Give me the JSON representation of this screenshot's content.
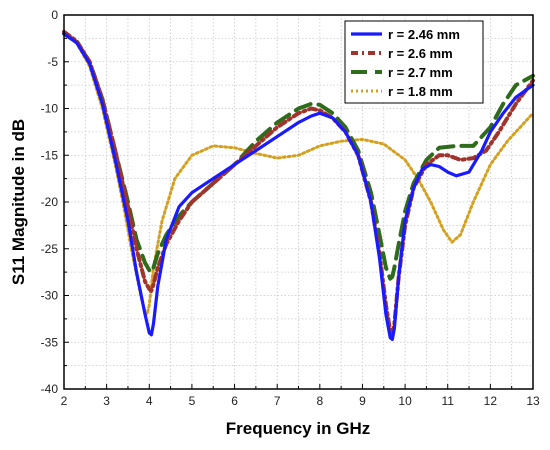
{
  "chart_data": {
    "type": "line",
    "title": "",
    "xlabel": "Frequency in GHz",
    "ylabel": "S11 Magnitude in dB",
    "xlim": [
      2,
      13
    ],
    "ylim": [
      -40,
      0
    ],
    "xticks": [
      2,
      3,
      4,
      5,
      6,
      7,
      8,
      9,
      10,
      11,
      12,
      13
    ],
    "yticks": [
      0,
      -5,
      -10,
      -15,
      -20,
      -25,
      -30,
      -35,
      -40
    ],
    "grid": "minor-dotted",
    "legend_position": "top-right",
    "series": [
      {
        "name": "r = 2.46 mm",
        "color": "#1a1aff",
        "style": "solid",
        "x": [
          2.0,
          2.3,
          2.6,
          2.9,
          3.2,
          3.5,
          3.7,
          3.9,
          4.0,
          4.05,
          4.1,
          4.2,
          4.4,
          4.7,
          5.0,
          5.5,
          6.0,
          6.5,
          7.0,
          7.5,
          7.8,
          8.0,
          8.3,
          8.6,
          8.9,
          9.2,
          9.4,
          9.55,
          9.65,
          9.7,
          9.75,
          9.85,
          10.0,
          10.2,
          10.4,
          10.6,
          10.8,
          11.0,
          11.2,
          11.5,
          11.8,
          12.0,
          12.3,
          12.6,
          13.0
        ],
        "values": [
          -2.0,
          -3.0,
          -5.2,
          -9.5,
          -15.5,
          -22.0,
          -27.5,
          -32.0,
          -34.0,
          -34.2,
          -33.0,
          -29.0,
          -24.0,
          -20.5,
          -19.0,
          -17.5,
          -16.0,
          -14.5,
          -13.0,
          -11.5,
          -10.8,
          -10.5,
          -11.0,
          -12.5,
          -15.0,
          -20.0,
          -26.0,
          -32.0,
          -34.5,
          -34.7,
          -33.5,
          -28.0,
          -22.0,
          -18.5,
          -16.5,
          -16.0,
          -16.2,
          -16.8,
          -17.2,
          -16.8,
          -14.5,
          -12.5,
          -10.5,
          -8.8,
          -7.5
        ]
      },
      {
        "name": "r = 2.6 mm",
        "color": "#a0342c",
        "style": "dash-dot",
        "x": [
          2.0,
          2.3,
          2.6,
          2.9,
          3.2,
          3.5,
          3.7,
          3.9,
          4.0,
          4.05,
          4.1,
          4.2,
          4.4,
          4.7,
          5.0,
          5.5,
          6.0,
          6.5,
          7.0,
          7.5,
          7.8,
          8.0,
          8.3,
          8.6,
          8.9,
          9.2,
          9.4,
          9.55,
          9.65,
          9.7,
          9.75,
          9.85,
          10.0,
          10.2,
          10.5,
          10.8,
          11.0,
          11.3,
          11.6,
          11.9,
          12.2,
          12.6,
          13.0
        ],
        "values": [
          -1.8,
          -2.8,
          -5.0,
          -9.0,
          -14.5,
          -20.5,
          -25.0,
          -28.5,
          -29.3,
          -29.5,
          -28.8,
          -27.0,
          -24.5,
          -22.0,
          -20.0,
          -18.0,
          -16.0,
          -14.0,
          -12.0,
          -10.5,
          -10.0,
          -10.2,
          -11.0,
          -12.5,
          -15.0,
          -20.0,
          -25.5,
          -31.0,
          -33.8,
          -34.2,
          -33.0,
          -28.0,
          -22.5,
          -18.5,
          -16.0,
          -15.0,
          -15.0,
          -15.5,
          -15.3,
          -14.5,
          -12.5,
          -9.5,
          -7.0
        ]
      },
      {
        "name": "r = 2.7 mm",
        "color": "#2e6b1a",
        "style": "long-dash",
        "x": [
          2.0,
          2.3,
          2.6,
          2.9,
          3.2,
          3.5,
          3.7,
          3.9,
          4.0,
          4.05,
          4.1,
          4.2,
          4.4,
          4.7,
          5.0,
          5.5,
          6.0,
          6.5,
          7.0,
          7.5,
          7.8,
          8.0,
          8.3,
          8.6,
          8.9,
          9.2,
          9.4,
          9.55,
          9.65,
          9.7,
          9.75,
          9.85,
          10.0,
          10.2,
          10.5,
          10.8,
          11.2,
          11.6,
          12.0,
          12.3,
          12.6,
          13.0
        ],
        "values": [
          -2.0,
          -2.9,
          -5.0,
          -9.0,
          -14.5,
          -20.0,
          -24.0,
          -26.5,
          -27.3,
          -27.5,
          -27.0,
          -25.5,
          -23.5,
          -21.5,
          -20.0,
          -18.0,
          -16.0,
          -13.5,
          -11.5,
          -10.0,
          -9.5,
          -9.6,
          -10.5,
          -12.0,
          -14.5,
          -19.0,
          -23.5,
          -27.0,
          -28.2,
          -28.0,
          -27.0,
          -24.5,
          -21.0,
          -18.0,
          -15.5,
          -14.2,
          -14.0,
          -14.0,
          -12.0,
          -9.5,
          -7.5,
          -6.5
        ]
      },
      {
        "name": "r = 1.8 mm",
        "color": "#d4a020",
        "style": "dotted",
        "x": [
          2.0,
          2.3,
          2.6,
          2.9,
          3.2,
          3.4,
          3.6,
          3.8,
          3.9,
          3.95,
          4.0,
          4.1,
          4.3,
          4.6,
          5.0,
          5.5,
          6.0,
          6.5,
          7.0,
          7.5,
          8.0,
          8.5,
          9.0,
          9.5,
          10.0,
          10.3,
          10.6,
          10.9,
          11.1,
          11.3,
          11.6,
          12.0,
          12.4,
          12.8,
          13.0
        ],
        "values": [
          -2.0,
          -3.0,
          -5.5,
          -10.0,
          -16.0,
          -20.5,
          -25.5,
          -30.0,
          -31.8,
          -32.0,
          -31.0,
          -27.0,
          -22.0,
          -17.5,
          -15.0,
          -14.0,
          -14.2,
          -14.8,
          -15.3,
          -15.0,
          -14.0,
          -13.5,
          -13.3,
          -13.8,
          -15.5,
          -17.5,
          -20.0,
          -23.0,
          -24.3,
          -23.5,
          -20.0,
          -16.0,
          -13.5,
          -11.5,
          -10.5
        ]
      }
    ]
  }
}
